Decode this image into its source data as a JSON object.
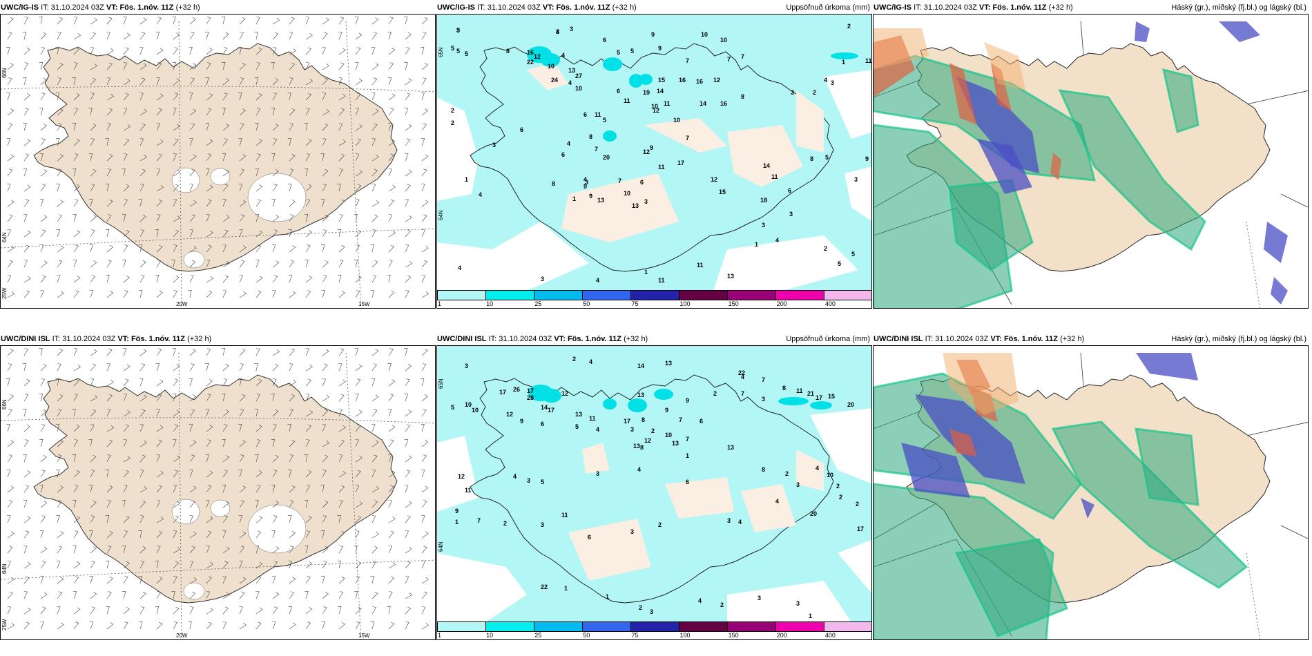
{
  "panels": [
    {
      "model": "UWC/IG-IS",
      "it_label": "IT:",
      "it_value": "31.10.2024 03Z",
      "vt_label": "VT: Fös. 1.nóv. 11Z",
      "lead": "(+32 h)",
      "right_title": "",
      "type": "wind"
    },
    {
      "model": "UWC/IG-IS",
      "it_label": "IT:",
      "it_value": "31.10.2024 03Z",
      "vt_label": "VT: Fös. 1.nóv. 11Z",
      "lead": "(+32 h)",
      "right_title": "Uppsöfnuð úrkoma (mm)",
      "type": "precip"
    },
    {
      "model": "UWC/IG-IS",
      "it_label": "IT:",
      "it_value": "31.10.2024 03Z",
      "vt_label": "VT: Fös. 1.nóv. 11Z",
      "lead": "(+32 h)",
      "right_title": "Háský (gr.), miðský (fj.bl.) og lágský (bl.)",
      "type": "cloud"
    },
    {
      "model": "UWC/DINI ISL",
      "it_label": "IT:",
      "it_value": "31.10.2024 03Z",
      "vt_label": "VT: Fös. 1.nóv. 11Z",
      "lead": "(+32 h)",
      "right_title": "",
      "type": "wind"
    },
    {
      "model": "UWC/DINI ISL",
      "it_label": "IT:",
      "it_value": "31.10.2024 03Z",
      "vt_label": "VT: Fös. 1.nóv. 11Z",
      "lead": "(+32 h)",
      "right_title": "Uppsöfnuð úrkoma (mm)",
      "type": "precip"
    },
    {
      "model": "UWC/DINI ISL",
      "it_label": "IT:",
      "it_value": "31.10.2024 03Z",
      "vt_label": "VT: Fös. 1.nóv. 11Z",
      "lead": "(+32 h)",
      "right_title": "Háský (gr.), miðský (fj.bl.) og lágský (bl.)",
      "type": "cloud"
    }
  ],
  "map_labels": {
    "lat_north": "66N",
    "lat_mid": "64N",
    "lon_west": "25W",
    "lon_mid": "20W",
    "lon_east": "15W",
    "lat_precip_north": "65N",
    "lat_precip_mid": "64N"
  },
  "precip_legend": {
    "ticks": [
      "1",
      "10",
      "25",
      "50",
      "75",
      "100",
      "150",
      "200",
      "400"
    ],
    "colors": [
      "#b2f6f6",
      "#00eeee",
      "#00bbee",
      "#3366ee",
      "#2222aa",
      "#660044",
      "#990077",
      "#ee00aa",
      "#f2b8ee"
    ]
  },
  "precip_values_top": [
    "3",
    "3",
    "3",
    "6",
    "9",
    "10",
    "10",
    "2",
    "5",
    "5",
    "5",
    "8",
    "16",
    "12",
    "22",
    "4",
    "10",
    "13",
    "27",
    "24",
    "5",
    "5",
    "9",
    "7",
    "7",
    "7",
    "4",
    "15",
    "16",
    "16",
    "12",
    "10",
    "6",
    "19",
    "14",
    "11",
    "14",
    "16",
    "11",
    "10",
    "8",
    "2",
    "12",
    "6",
    "11",
    "2",
    "5",
    "8",
    "4",
    "9",
    "10",
    "7",
    "6",
    "3",
    "7",
    "6",
    "20",
    "12",
    "17",
    "11",
    "4",
    "3",
    "7",
    "6",
    "8",
    "9",
    "9",
    "10",
    "3",
    "4",
    "1",
    "12",
    "1",
    "13",
    "13",
    "15",
    "14",
    "11",
    "18",
    "6",
    "8",
    "5",
    "11",
    "1",
    "4",
    "3",
    "2",
    "3",
    "9",
    "3",
    "3",
    "3",
    "1",
    "4",
    "2",
    "5",
    "5",
    "4",
    "3",
    "4",
    "1",
    "11",
    "11",
    "13",
    "1",
    "2",
    "1",
    "5",
    "5",
    "4"
  ],
  "precip_values_bottom": [
    "3",
    "2",
    "4",
    "14",
    "13",
    "22",
    "4",
    "7",
    "5",
    "10",
    "10",
    "17",
    "26",
    "17",
    "28",
    "12",
    "14",
    "17",
    "13",
    "9",
    "9",
    "2",
    "7",
    "3",
    "8",
    "11",
    "21",
    "17",
    "15",
    "20",
    "12",
    "12",
    "13",
    "11",
    "17",
    "8",
    "7",
    "6",
    "9",
    "6",
    "5",
    "4",
    "3",
    "2",
    "10",
    "7",
    "12",
    "13",
    "8",
    "13",
    "13",
    "1",
    "12",
    "11",
    "4",
    "3",
    "5",
    "3",
    "4",
    "6",
    "8",
    "2",
    "3",
    "2",
    "2",
    "2",
    "9",
    "1",
    "7",
    "2",
    "3",
    "11",
    "6",
    "3",
    "2",
    "3",
    "4",
    "4",
    "4",
    "10",
    "20",
    "17",
    "22",
    "1",
    "1",
    "2",
    "3",
    "4",
    "2",
    "3",
    "3",
    "1"
  ]
}
